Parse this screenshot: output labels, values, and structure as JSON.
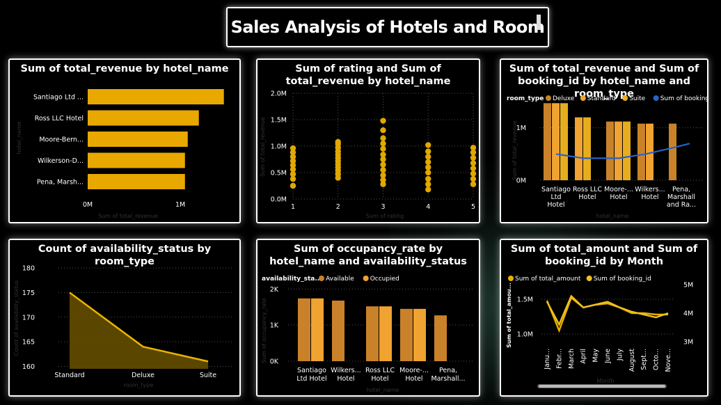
{
  "dashboard": {
    "title": "Sales Analysis of Hotels and Room",
    "colors": {
      "background": "#000000",
      "gold": "#E8A800",
      "deluxe": "#C9822A",
      "standard": "#F0A330",
      "suite": "#E6AE1E",
      "booking_line": "#2A62C9"
    }
  },
  "charts": {
    "revenue_by_hotel": {
      "title": "Sum of total_revenue by hotel_name",
      "xlabel": "Sum of total_revenue",
      "ylabel": "hotel_name",
      "x_ticks": [
        "0M",
        "1M"
      ]
    },
    "rating_revenue": {
      "title": "Sum of rating and Sum of total_revenue by hotel_name",
      "xlabel": "Sum of rating",
      "ylabel": "Sum of total_revenue",
      "y_ticks": [
        "2.0M",
        "1.5M",
        "1.0M",
        "0.5M",
        "0.0M"
      ],
      "x_ticks": [
        "1",
        "2",
        "3",
        "4",
        "5"
      ]
    },
    "revenue_booking_room": {
      "title": "Sum of total_revenue and Sum of booking_id by hotel_name and room_type",
      "legend_label": "room_type",
      "legend_items": [
        "Deluxe",
        "Standard",
        "Suite",
        "Sum of booking_id"
      ],
      "y_ticks": [
        "1M",
        "0M"
      ],
      "ylabel": "Sum of total_revenue",
      "xlabel": "hotel_name",
      "category_labels": [
        [
          "Santiago",
          "Ltd",
          "Hotel"
        ],
        [
          "Ross LLC",
          "Hotel"
        ],
        [
          "Moore-...",
          "Hotel"
        ],
        [
          "Wilkers...",
          "Hotel"
        ],
        [
          "Pena,",
          "Marshall",
          "and Ra..."
        ]
      ]
    },
    "availability_by_room": {
      "title": "Count of availability_status by room_type",
      "ylabel": "Count of availability_status",
      "xlabel": "room_type",
      "y_ticks": [
        "180",
        "175",
        "170",
        "165",
        "160"
      ]
    },
    "occupancy_by_hotel": {
      "title": "Sum of occupancy_rate by hotel_name and availability_status",
      "legend_label": "availability_sta...",
      "legend_items": [
        "Available",
        "Occupied"
      ],
      "ylabel": "Sum of occupancy_rate",
      "xlabel": "hotel_name",
      "y_ticks": [
        "2K",
        "1K",
        "0K"
      ],
      "category_labels": [
        [
          "Santiago",
          "Ltd Hotel"
        ],
        [
          "Wilkers...",
          "Hotel"
        ],
        [
          "Ross LLC",
          "Hotel"
        ],
        [
          "Moore-...",
          "Hotel"
        ],
        [
          "Pena,",
          "Marshall..."
        ]
      ]
    },
    "amount_booking_month": {
      "title": "Sum of total_amount and Sum of booking_id by Month",
      "legend_items": [
        "Sum of total_amount",
        "Sum of booking_id"
      ],
      "ylabel": "Sum of total_amou...",
      "y_ticks_left": [
        "1.5M",
        "1.0M"
      ],
      "y_ticks_right": [
        "5M",
        "4M",
        "3M"
      ],
      "xlabel": "Month",
      "month_labels": [
        "Janu...",
        "Febr...",
        "March",
        "April",
        "May",
        "June",
        "July",
        "August",
        "Sept...",
        "Octo...",
        "Nove..."
      ]
    }
  },
  "chart_data": [
    {
      "type": "bar",
      "orientation": "horizontal",
      "title": "Sum of total_revenue by hotel_name",
      "xlabel": "Sum of total_revenue",
      "ylabel": "hotel_name",
      "categories": [
        "Santiago Ltd ...",
        "Ross LLC Hotel",
        "Moore-Bern...",
        "Wilkerson-D...",
        "Pena, Marsh..."
      ],
      "values": [
        1.47,
        1.2,
        1.08,
        1.05,
        1.05
      ],
      "value_unit": "M",
      "xlim": [
        0,
        1.6
      ]
    },
    {
      "type": "scatter",
      "title": "Sum of rating and Sum of total_revenue by hotel_name",
      "xlabel": "Sum of rating",
      "ylabel": "Sum of total_revenue",
      "xlim": [
        1,
        5
      ],
      "ylim": [
        0,
        2.0
      ],
      "points": [
        [
          1,
          0.25
        ],
        [
          1,
          0.38
        ],
        [
          1,
          0.47
        ],
        [
          1,
          0.56
        ],
        [
          1,
          0.64
        ],
        [
          1,
          0.72
        ],
        [
          1,
          0.8
        ],
        [
          1,
          0.88
        ],
        [
          1,
          0.96
        ],
        [
          2,
          0.4
        ],
        [
          2,
          0.47
        ],
        [
          2,
          0.54
        ],
        [
          2,
          0.6
        ],
        [
          2,
          0.66
        ],
        [
          2,
          0.72
        ],
        [
          2,
          0.78
        ],
        [
          2,
          0.84
        ],
        [
          2,
          0.9
        ],
        [
          2,
          0.97
        ],
        [
          2,
          1.04
        ],
        [
          2,
          1.08
        ],
        [
          3,
          0.28
        ],
        [
          3,
          0.36
        ],
        [
          3,
          0.45
        ],
        [
          3,
          0.55
        ],
        [
          3,
          0.65
        ],
        [
          3,
          0.75
        ],
        [
          3,
          0.84
        ],
        [
          3,
          0.95
        ],
        [
          3,
          1.05
        ],
        [
          3,
          1.15
        ],
        [
          3,
          1.3
        ],
        [
          3,
          1.48
        ],
        [
          4,
          0.18
        ],
        [
          4,
          0.28
        ],
        [
          4,
          0.38
        ],
        [
          4,
          0.5
        ],
        [
          4,
          0.6
        ],
        [
          4,
          0.7
        ],
        [
          4,
          0.8
        ],
        [
          4,
          0.9
        ],
        [
          4,
          1.02
        ],
        [
          5,
          0.28
        ],
        [
          5,
          0.38
        ],
        [
          5,
          0.48
        ],
        [
          5,
          0.58
        ],
        [
          5,
          0.68
        ],
        [
          5,
          0.78
        ],
        [
          5,
          0.88
        ],
        [
          5,
          0.97
        ]
      ]
    },
    {
      "type": "bar",
      "title": "Sum of total_revenue and Sum of booking_id by hotel_name and room_type",
      "categories": [
        "Santiago Ltd Hotel",
        "Ross LLC Hotel",
        "Moore-... Hotel",
        "Wilkers... Hotel",
        "Pena, Marshall and Ra..."
      ],
      "series": [
        {
          "name": "Deluxe",
          "values": [
            1.47,
            null,
            1.12,
            1.08,
            1.08
          ]
        },
        {
          "name": "Standard",
          "values": [
            1.47,
            1.2,
            1.12,
            1.08,
            null
          ]
        },
        {
          "name": "Suite",
          "values": [
            1.47,
            1.2,
            1.12,
            null,
            null
          ]
        }
      ],
      "line_series": {
        "name": "Sum of booking_id",
        "values": [
          0.5,
          0.42,
          0.42,
          0.5,
          0.62
        ]
      },
      "value_unit": "M",
      "ylim": [
        0,
        1.5
      ]
    },
    {
      "type": "area",
      "title": "Count of availability_status by room_type",
      "xlabel": "room_type",
      "ylabel": "Count of availability_status",
      "categories": [
        "Standard",
        "Deluxe",
        "Suite"
      ],
      "values": [
        175,
        164,
        161
      ],
      "ylim": [
        159.5,
        181
      ]
    },
    {
      "type": "bar",
      "title": "Sum of occupancy_rate by hotel_name and availability_status",
      "xlabel": "hotel_name",
      "ylabel": "Sum of occupancy_rate",
      "categories": [
        "Santiago Ltd Hotel",
        "Wilkers... Hotel",
        "Ross LLC Hotel",
        "Moore-... Hotel",
        "Pena, Marshall..."
      ],
      "series": [
        {
          "name": "Available",
          "values": [
            1.74,
            1.68,
            1.52,
            1.45,
            1.27
          ]
        },
        {
          "name": "Occupied",
          "values": [
            1.74,
            null,
            1.52,
            1.45,
            null
          ]
        }
      ],
      "value_unit": "K",
      "ylim": [
        0,
        2.2
      ]
    },
    {
      "type": "line",
      "title": "Sum of total_amount and Sum of booking_id by Month",
      "xlabel": "Month",
      "categories": [
        "January",
        "February",
        "March",
        "April",
        "May",
        "June",
        "July",
        "August",
        "September",
        "October",
        "November"
      ],
      "series": [
        {
          "name": "Sum of total_amount",
          "axis": "left",
          "unit": "M",
          "values": [
            1.48,
            1.05,
            1.52,
            1.38,
            1.42,
            1.44,
            1.38,
            1.3,
            1.3,
            1.28,
            1.28
          ]
        },
        {
          "name": "Sum of booking_id",
          "axis": "right",
          "unit": "M",
          "values": [
            4.4,
            3.6,
            4.6,
            4.2,
            4.3,
            4.4,
            4.2,
            4.05,
            3.95,
            3.85,
            4.0
          ]
        }
      ],
      "ylim_left": [
        0.85,
        1.75
      ],
      "ylim_right": [
        2.9,
        5.1
      ]
    }
  ]
}
